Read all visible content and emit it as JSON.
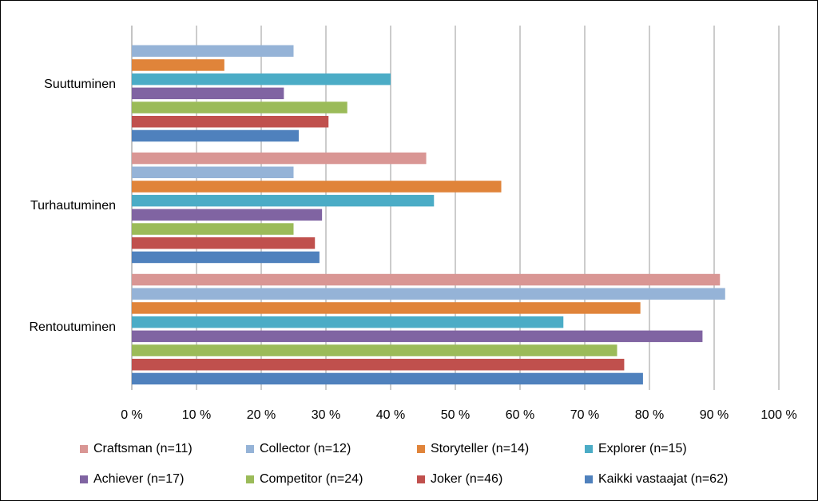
{
  "chart_data": {
    "type": "bar",
    "orientation": "horizontal",
    "categories": [
      "Suuttuminen",
      "Turhautuminen",
      "Rentoutuminen"
    ],
    "series": [
      {
        "name": "Craftsman (n=11)",
        "color": "#d99694",
        "values": [
          0,
          45.5,
          90.9
        ]
      },
      {
        "name": "Collector (n=12)",
        "color": "#95b3d7",
        "values": [
          25,
          25,
          91.7
        ]
      },
      {
        "name": "Storyteller (n=14)",
        "color": "#e0843a",
        "values": [
          14.3,
          57.1,
          78.6
        ]
      },
      {
        "name": "Explorer (n=15)",
        "color": "#4bacc6",
        "values": [
          40,
          46.7,
          66.7
        ]
      },
      {
        "name": "Achiever (n=17)",
        "color": "#8064a2",
        "values": [
          23.5,
          29.4,
          88.2
        ]
      },
      {
        "name": "Competitor (n=24)",
        "color": "#9bbb59",
        "values": [
          33.3,
          25,
          75
        ]
      },
      {
        "name": "Joker (n=46)",
        "color": "#c0504d",
        "values": [
          30.4,
          28.3,
          76.1
        ]
      },
      {
        "name": "Kaikki vastaajat (n=62)",
        "color": "#4f81bd",
        "values": [
          25.8,
          29,
          79
        ]
      }
    ],
    "xlim": [
      0,
      100
    ],
    "xticks": [
      {
        "value": 0,
        "label": "0 %"
      },
      {
        "value": 10,
        "label": "10 %"
      },
      {
        "value": 20,
        "label": "20 %"
      },
      {
        "value": 30,
        "label": "30 %"
      },
      {
        "value": 40,
        "label": "40 %"
      },
      {
        "value": 50,
        "label": "50 %"
      },
      {
        "value": 60,
        "label": "60 %"
      },
      {
        "value": 70,
        "label": "70 %"
      },
      {
        "value": 80,
        "label": "80 %"
      },
      {
        "value": 90,
        "label": "90 %"
      },
      {
        "value": 100,
        "label": "100 %"
      }
    ],
    "grid": true,
    "legend": "bottom"
  }
}
